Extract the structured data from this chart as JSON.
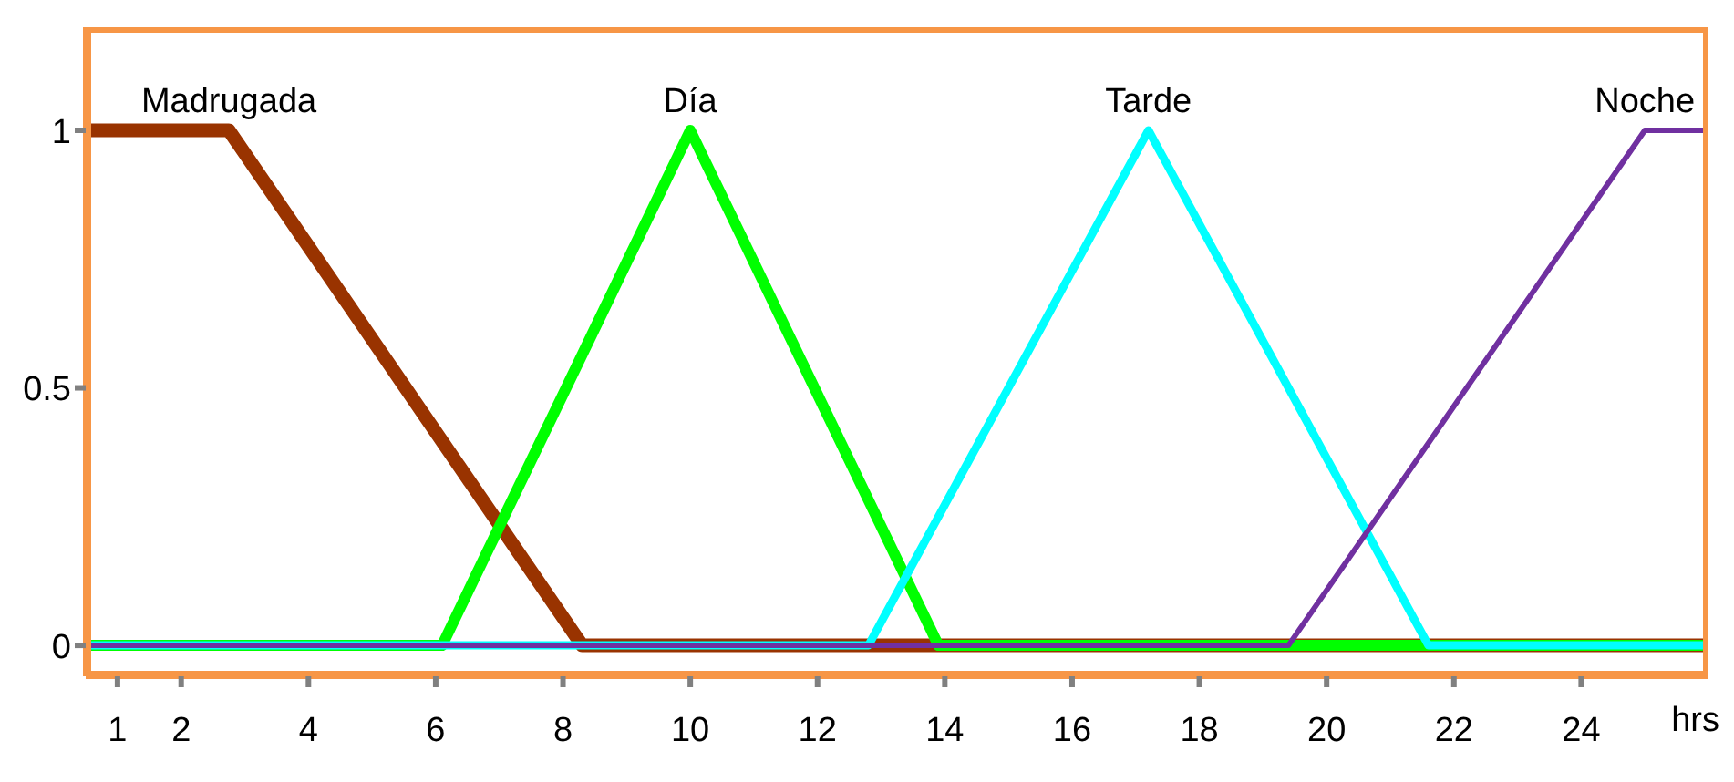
{
  "chart_data": {
    "type": "line",
    "xlabel": "hrs",
    "xlim": [
      0.5,
      26
    ],
    "xticks": [
      1,
      2,
      4,
      6,
      8,
      10,
      12,
      14,
      16,
      18,
      20,
      22,
      24
    ],
    "ylim": [
      -0.06,
      1.2
    ],
    "yticks": [
      0,
      0.5,
      1
    ],
    "grid": false,
    "legend": false,
    "marker": "none",
    "line_style": "solid",
    "series": [
      {
        "name": "Madrugada",
        "color": "#993300",
        "x": [
          0.5,
          2.75,
          8.3,
          26
        ],
        "values": [
          1,
          1,
          0,
          0
        ]
      },
      {
        "name": "Día",
        "color": "#00ff00",
        "x": [
          0.5,
          6.1,
          10,
          13.9,
          26
        ],
        "values": [
          0,
          0,
          1,
          0,
          0
        ]
      },
      {
        "name": "Tarde",
        "color": "#00ffff",
        "x": [
          0.5,
          12.8,
          17.2,
          21.6,
          26
        ],
        "values": [
          0,
          0,
          1,
          0,
          0
        ]
      },
      {
        "name": "Noche",
        "color": "#7030a0",
        "x": [
          0.5,
          19.4,
          25,
          26
        ],
        "values": [
          0,
          0,
          1,
          1
        ]
      }
    ]
  }
}
